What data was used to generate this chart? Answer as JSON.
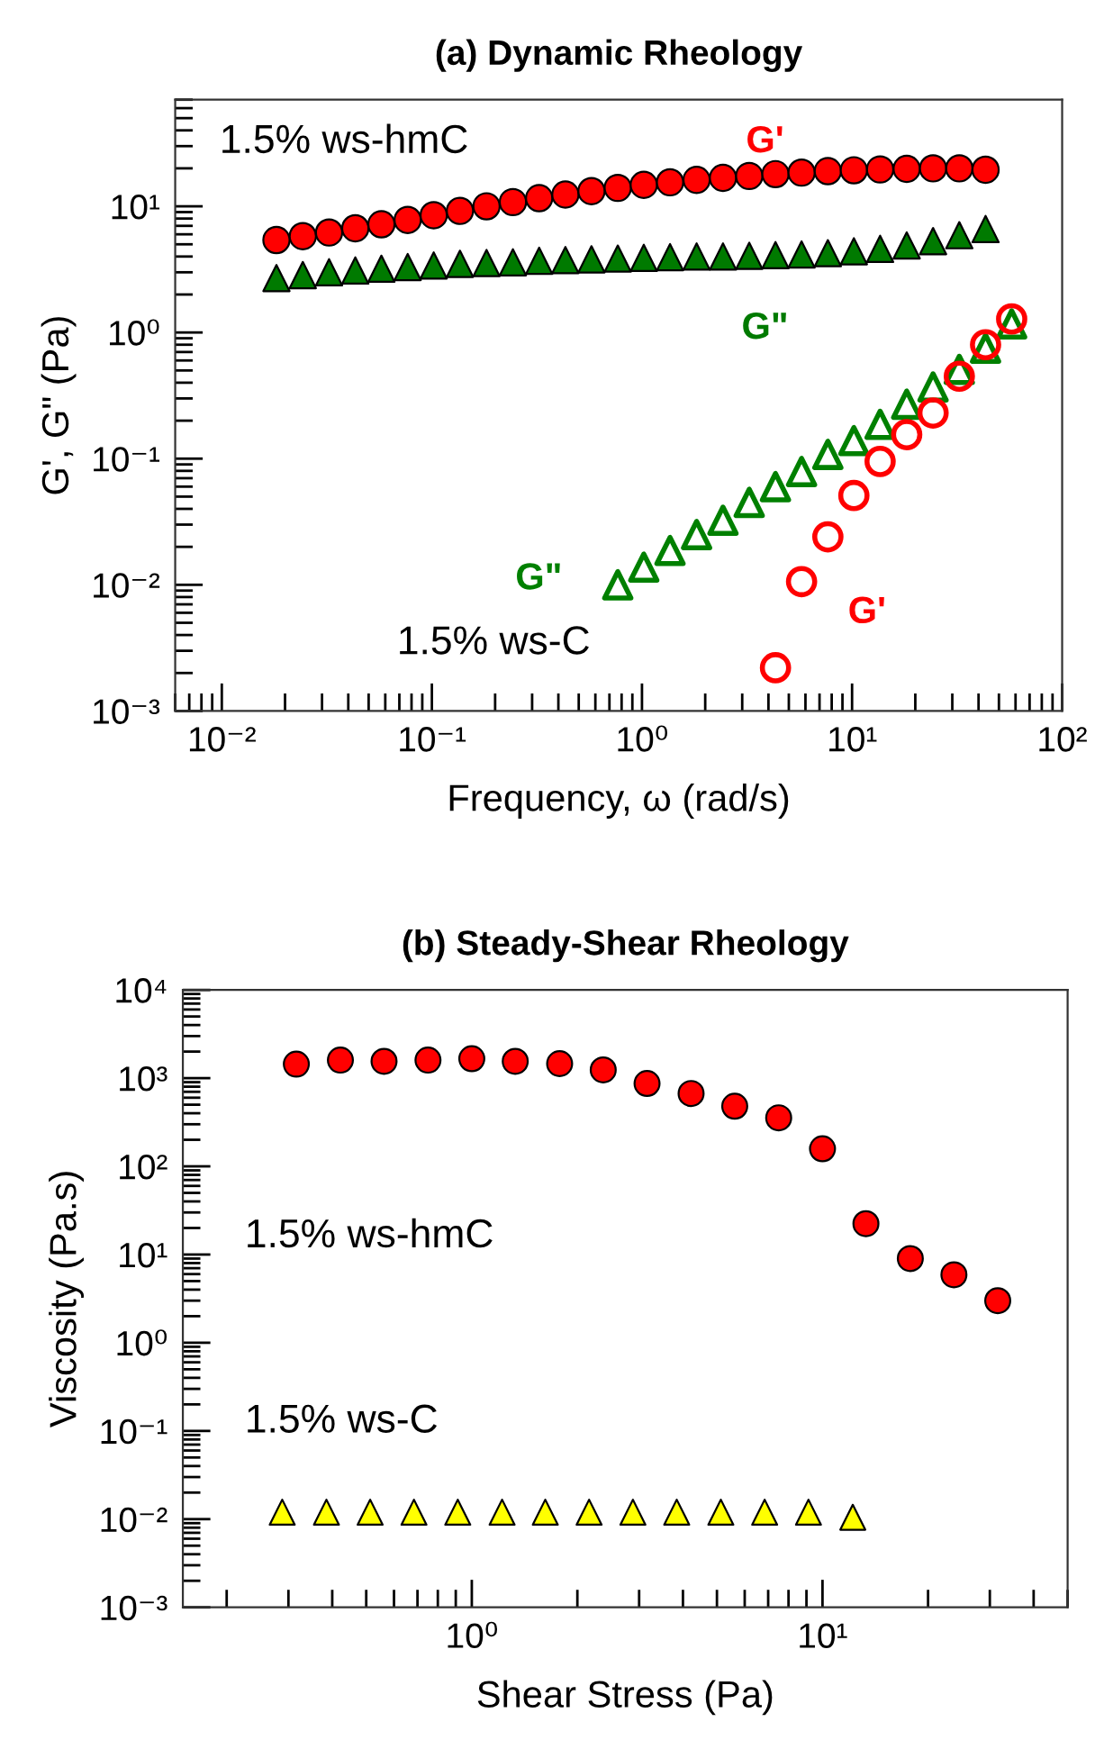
{
  "chart_data": [
    {
      "type": "scatter",
      "title": "(a) Dynamic Rheology",
      "xlabel": "Frequency, ω (rad/s)",
      "ylabel": "G', G\" (Pa)",
      "log": "xy",
      "grid": false,
      "legend": false,
      "xlim": [
        0.006,
        100
      ],
      "ylim": [
        0.001,
        70
      ],
      "xticks": [
        {
          "value": 0.01,
          "label": "10⁻²"
        },
        {
          "value": 0.1,
          "label": "10⁻¹"
        },
        {
          "value": 1,
          "label": "10⁰"
        },
        {
          "value": 10,
          "label": "10¹"
        },
        {
          "value": 100,
          "label": "10²"
        }
      ],
      "yticks": [
        {
          "value": 0.001,
          "label": "10⁻³"
        },
        {
          "value": 0.01,
          "label": "10⁻²"
        },
        {
          "value": 0.1,
          "label": "10⁻¹"
        },
        {
          "value": 1,
          "label": "10⁰"
        },
        {
          "value": 10,
          "label": "10¹"
        }
      ],
      "series": [
        {
          "name": "G'",
          "color": "#ff0000",
          "marker": "circle",
          "x": [
            0.0182,
            0.0243,
            0.0324,
            0.0432,
            0.0575,
            0.0767,
            0.102,
            0.136,
            0.182,
            0.243,
            0.324,
            0.432,
            0.575,
            0.767,
            1.02,
            1.36,
            1.82,
            2.43,
            3.24,
            4.32,
            5.75,
            7.67,
            10.2,
            13.6,
            18.2,
            24.3,
            32.4,
            43.2
          ],
          "values": [
            5.4,
            5.8,
            6.2,
            6.7,
            7.2,
            7.8,
            8.5,
            9.2,
            10,
            10.8,
            11.6,
            12.4,
            13.2,
            14,
            14.8,
            15.5,
            16.2,
            16.8,
            17.4,
            18,
            18.5,
            19,
            19.3,
            19.6,
            19.8,
            20,
            20,
            19.5
          ]
        },
        {
          "name": "G\"",
          "color": "#007a00",
          "marker": "triangle",
          "x": [
            0.0182,
            0.0243,
            0.0324,
            0.0432,
            0.0575,
            0.0767,
            0.102,
            0.136,
            0.182,
            0.243,
            0.324,
            0.432,
            0.575,
            0.767,
            1.02,
            1.36,
            1.82,
            2.43,
            3.24,
            4.32,
            5.75,
            7.67,
            10.2,
            13.6,
            18.2,
            24.3,
            32.4,
            43.2
          ],
          "values": [
            2.7,
            2.85,
            3.0,
            3.1,
            3.2,
            3.3,
            3.4,
            3.5,
            3.55,
            3.6,
            3.7,
            3.75,
            3.8,
            3.85,
            3.9,
            3.95,
            4.0,
            4.0,
            4.05,
            4.1,
            4.15,
            4.25,
            4.4,
            4.6,
            4.9,
            5.3,
            5.9,
            6.6
          ]
        },
        {
          "name": "G\"",
          "color": "#008000",
          "marker": "triangle",
          "x": [
            0.767,
            1.02,
            1.36,
            1.82,
            2.43,
            3.24,
            4.32,
            5.75,
            7.67,
            10.2,
            13.6,
            18.2,
            24.3,
            32.4,
            43.2,
            57.5
          ],
          "values": [
            0.01,
            0.0138,
            0.0187,
            0.025,
            0.0325,
            0.045,
            0.06,
            0.079,
            0.108,
            0.139,
            0.187,
            0.27,
            0.37,
            0.51,
            0.75,
            1.17
          ]
        },
        {
          "name": "G'",
          "color": "#ff0000",
          "marker": "circle",
          "x": [
            4.32,
            5.75,
            7.67,
            10.2,
            13.6,
            18.2,
            24.3,
            32.4,
            43.2,
            57.5
          ],
          "values": [
            0.0022,
            0.0106,
            0.024,
            0.051,
            0.095,
            0.155,
            0.23,
            0.45,
            0.8,
            1.28
          ]
        }
      ],
      "annotations": [
        "1.5% ws-hmC",
        "1.5% ws-C"
      ]
    },
    {
      "type": "scatter",
      "title": "(b) Steady-Shear Rheology",
      "xlabel": "Shear Stress (Pa)",
      "ylabel": "Viscosity (Pa.s)",
      "log": "xy",
      "grid": false,
      "legend": false,
      "xlim": [
        0.15,
        50
      ],
      "ylim": [
        0.001,
        10000
      ],
      "xticks": [
        {
          "value": 1,
          "label": "10⁰"
        },
        {
          "value": 10,
          "label": "10¹"
        }
      ],
      "yticks": [
        {
          "value": 0.001,
          "label": "10⁻³"
        },
        {
          "value": 0.01,
          "label": "10⁻²"
        },
        {
          "value": 0.1,
          "label": "10⁻¹"
        },
        {
          "value": 1,
          "label": "10⁰"
        },
        {
          "value": 10,
          "label": "10¹"
        },
        {
          "value": 100,
          "label": "10²"
        },
        {
          "value": 1000,
          "label": "10³"
        },
        {
          "value": 10000,
          "label": "10⁴"
        }
      ],
      "series": [
        {
          "color": "#ff0000",
          "marker": "circle",
          "x": [
            0.316,
            0.422,
            0.562,
            0.75,
            1.0,
            1.33,
            1.78,
            2.37,
            3.16,
            4.22,
            5.62,
            7.5,
            10,
            13.3,
            17.8,
            23.7,
            31.6
          ],
          "values": [
            1440,
            1600,
            1550,
            1600,
            1660,
            1550,
            1460,
            1240,
            870,
            670,
            480,
            355,
            158,
            22.4,
            9,
            5.9,
            3.0
          ]
        },
        {
          "color": "#ffff00",
          "marker": "triangle",
          "x": [
            0.288,
            0.385,
            0.513,
            0.684,
            0.912,
            1.22,
            1.62,
            2.16,
            2.88,
            3.84,
            5.13,
            6.84,
            9.12,
            12.2
          ],
          "values": [
            0.012,
            0.012,
            0.012,
            0.012,
            0.012,
            0.012,
            0.012,
            0.012,
            0.012,
            0.012,
            0.012,
            0.012,
            0.012,
            0.0105
          ]
        }
      ],
      "annotations": [
        "1.5% ws-hmC",
        "1.5% ws-C"
      ]
    }
  ]
}
